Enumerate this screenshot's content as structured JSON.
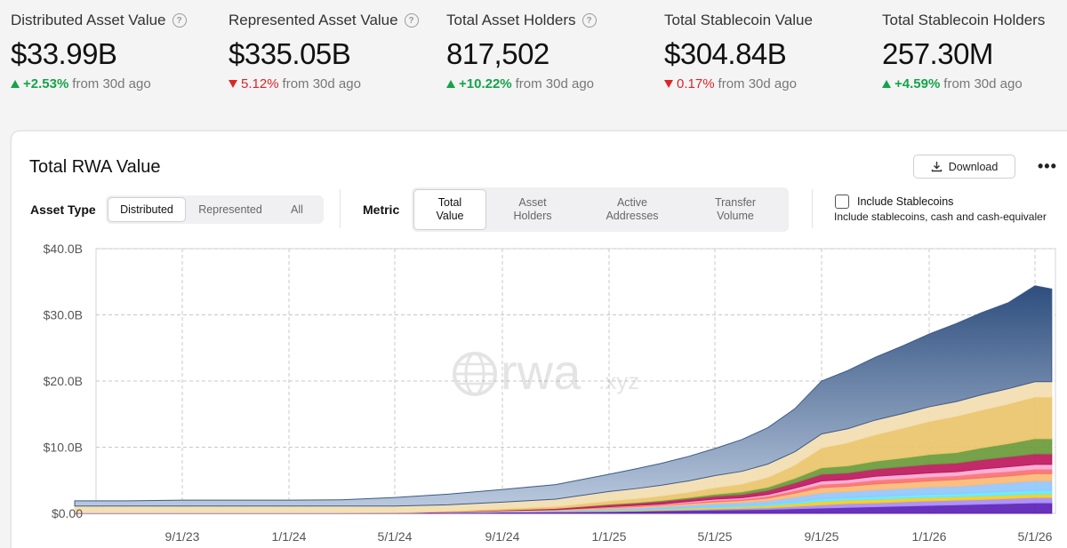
{
  "stats": [
    {
      "label": "Distributed Asset Value",
      "help": true,
      "value": "$33.99B",
      "change": "+2.53%",
      "direction": "up",
      "suffix": "from 30d ago"
    },
    {
      "label": "Represented Asset Value",
      "help": true,
      "value": "$335.05B",
      "change": "5.12%",
      "direction": "down",
      "suffix": "from 30d ago"
    },
    {
      "label": "Total Asset Holders",
      "help": true,
      "value": "817,502",
      "change": "+10.22%",
      "direction": "up",
      "suffix": "from 30d ago"
    },
    {
      "label": "Total Stablecoin Value",
      "help": false,
      "value": "$304.84B",
      "change": "0.17%",
      "direction": "down",
      "suffix": "from 30d ago"
    },
    {
      "label": "Total Stablecoin Holders",
      "help": false,
      "value": "257.30M",
      "change": "+4.59%",
      "direction": "up",
      "suffix": "from 30d ago"
    }
  ],
  "card": {
    "title": "Total RWA Value",
    "download_label": "Download",
    "more_icon": "more-horizontal-icon",
    "download_icon": "download-icon"
  },
  "controls": {
    "asset_type_label": "Asset Type",
    "asset_type_options": [
      "Distributed",
      "Represented",
      "All"
    ],
    "asset_type_selected": "Distributed",
    "metric_label": "Metric",
    "metric_options": [
      "Total Value",
      "Asset Holders",
      "Active Addresses",
      "Transfer Volume"
    ],
    "metric_selected": "Total Value",
    "include_stablecoins_label": "Include Stablecoins",
    "include_stablecoins_checked": false,
    "include_stablecoins_desc": "Include stablecoins, cash and cash-equivaler"
  },
  "watermark": {
    "brand": "rwa",
    "suffix": ".xyz"
  },
  "colors": {
    "up": "#16a34a",
    "down": "#dc2626"
  },
  "chart_data": {
    "type": "area",
    "stacked": true,
    "title": "",
    "xlabel": "",
    "ylabel": "",
    "ylim": [
      0,
      40
    ],
    "y_unit": "B USD",
    "y_ticks": [
      "$0.00",
      "$10.0B",
      "$20.0B",
      "$30.0B",
      "$40.0B"
    ],
    "x_ticks": [
      "9/1/23",
      "1/1/24",
      "5/1/24",
      "9/1/24",
      "1/1/25",
      "5/1/25",
      "9/1/25",
      "1/1/26",
      "5/1/26"
    ],
    "grid": true,
    "legend": "none",
    "x": [
      "2023-05-01",
      "2023-07-01",
      "2023-09-01",
      "2023-11-01",
      "2024-01-01",
      "2024-03-01",
      "2024-05-01",
      "2024-07-01",
      "2024-09-01",
      "2024-11-01",
      "2025-01-01",
      "2025-02-01",
      "2025-03-01",
      "2025-04-01",
      "2025-05-01",
      "2025-06-01",
      "2025-07-01",
      "2025-08-01",
      "2025-09-01",
      "2025-10-01",
      "2025-11-01",
      "2025-12-01",
      "2026-01-01",
      "2026-02-01",
      "2026-03-01",
      "2026-04-01",
      "2026-05-01",
      "2026-05-20"
    ],
    "series": [
      {
        "color": "#5b21b6",
        "values": [
          0.1,
          0.1,
          0.1,
          0.1,
          0.1,
          0.1,
          0.1,
          0.15,
          0.2,
          0.25,
          0.3,
          0.35,
          0.4,
          0.45,
          0.5,
          0.55,
          0.6,
          0.7,
          0.8,
          0.9,
          1.0,
          1.1,
          1.2,
          1.3,
          1.4,
          1.5,
          1.6,
          1.6
        ]
      },
      {
        "color": "#a78bfa",
        "values": [
          0,
          0,
          0,
          0,
          0,
          0,
          0,
          0,
          0,
          0,
          0,
          0,
          0.05,
          0.1,
          0.15,
          0.2,
          0.25,
          0.35,
          0.5,
          0.6,
          0.6,
          0.65,
          0.7,
          0.7,
          0.7,
          0.75,
          0.8,
          0.8
        ]
      },
      {
        "color": "#facc15",
        "values": [
          0,
          0,
          0,
          0,
          0,
          0,
          0,
          0,
          0,
          0.05,
          0.1,
          0.1,
          0.15,
          0.2,
          0.2,
          0.25,
          0.3,
          0.4,
          0.5,
          0.5,
          0.5,
          0.5,
          0.5,
          0.5,
          0.5,
          0.5,
          0.5,
          0.5
        ]
      },
      {
        "color": "#67e8f9",
        "values": [
          0,
          0,
          0,
          0,
          0,
          0,
          0,
          0,
          0,
          0,
          0.1,
          0.1,
          0.1,
          0.15,
          0.2,
          0.2,
          0.25,
          0.3,
          0.4,
          0.4,
          0.45,
          0.5,
          0.5,
          0.5,
          0.55,
          0.6,
          0.6,
          0.6
        ]
      },
      {
        "color": "#93c5fd",
        "values": [
          0,
          0,
          0,
          0,
          0,
          0,
          0,
          0,
          0.1,
          0.15,
          0.2,
          0.25,
          0.3,
          0.35,
          0.4,
          0.45,
          0.5,
          0.7,
          0.9,
          0.9,
          1.0,
          1.0,
          1.1,
          1.1,
          1.2,
          1.3,
          1.4,
          1.4
        ]
      },
      {
        "color": "#fdba74",
        "values": [
          0,
          0,
          0,
          0,
          0,
          0,
          0,
          0.05,
          0.1,
          0.1,
          0.15,
          0.2,
          0.2,
          0.25,
          0.3,
          0.3,
          0.4,
          0.6,
          0.8,
          0.8,
          0.9,
          0.9,
          0.9,
          1.0,
          1.0,
          1.0,
          1.1,
          1.1
        ]
      },
      {
        "color": "#f87171",
        "values": [
          0,
          0,
          0,
          0,
          0,
          0,
          0,
          0,
          0,
          0,
          0.1,
          0.1,
          0.1,
          0.15,
          0.2,
          0.2,
          0.3,
          0.4,
          0.5,
          0.5,
          0.6,
          0.6,
          0.6,
          0.6,
          0.7,
          0.7,
          0.7,
          0.7
        ]
      },
      {
        "color": "#f9a8d4",
        "values": [
          0,
          0,
          0,
          0,
          0,
          0,
          0,
          0,
          0,
          0,
          0.05,
          0.1,
          0.1,
          0.15,
          0.2,
          0.2,
          0.25,
          0.35,
          0.5,
          0.5,
          0.55,
          0.6,
          0.6,
          0.6,
          0.65,
          0.7,
          0.7,
          0.7
        ]
      },
      {
        "color": "#be185d",
        "values": [
          0,
          0,
          0,
          0,
          0,
          0,
          0,
          0.05,
          0.1,
          0.2,
          0.3,
          0.35,
          0.4,
          0.4,
          0.45,
          0.5,
          0.6,
          0.8,
          1.0,
          1.0,
          1.1,
          1.2,
          1.3,
          1.3,
          1.4,
          1.5,
          1.6,
          1.6
        ]
      },
      {
        "color": "#6a9a3a",
        "values": [
          0,
          0,
          0,
          0,
          0,
          0,
          0,
          0,
          0,
          0,
          0.1,
          0.1,
          0.15,
          0.2,
          0.3,
          0.4,
          0.5,
          0.7,
          1.0,
          1.1,
          1.2,
          1.3,
          1.5,
          1.6,
          1.8,
          2.0,
          2.3,
          2.3
        ]
      },
      {
        "color": "#e9c46a",
        "values": [
          0,
          0,
          0,
          0,
          0,
          0,
          0.05,
          0.1,
          0.2,
          0.3,
          0.5,
          0.6,
          0.7,
          0.8,
          1.0,
          1.2,
          1.5,
          2.0,
          3.0,
          3.5,
          4.0,
          4.5,
          5.0,
          5.5,
          5.7,
          6.0,
          6.3,
          6.3
        ]
      },
      {
        "color": "#f3ddb0",
        "values": [
          1.0,
          1.0,
          1.0,
          1.0,
          1.0,
          1.0,
          0.95,
          0.95,
          1.0,
          1.1,
          1.4,
          1.5,
          1.6,
          1.7,
          1.8,
          1.9,
          2.0,
          2.0,
          2.1,
          2.1,
          2.2,
          2.2,
          2.2,
          2.2,
          2.3,
          2.3,
          2.3,
          2.3
        ]
      },
      {
        "color": "#3d5a87",
        "values": [
          0.8,
          0.8,
          0.9,
          0.9,
          0.9,
          0.95,
          1.3,
          1.6,
          1.9,
          2.2,
          2.6,
          3.0,
          3.3,
          3.7,
          4.1,
          4.8,
          5.5,
          6.5,
          8.0,
          8.8,
          9.5,
          10.2,
          11.0,
          11.8,
          12.4,
          13.0,
          14.5,
          14.0
        ]
      }
    ]
  }
}
